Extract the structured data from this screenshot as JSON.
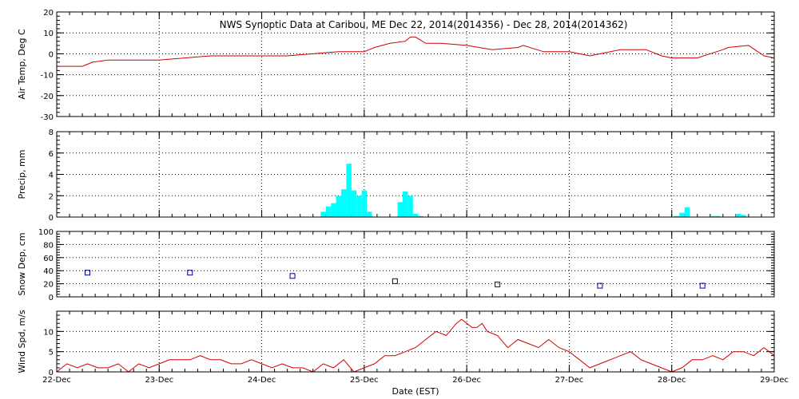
{
  "colors": {
    "background": "#ffffff",
    "axes": "#000000",
    "grid": "#000000",
    "temp_line": "#cc0000",
    "precip_bar": "#00ffff",
    "snow_marker": "#00008b",
    "wind_line": "#cc0000"
  },
  "figure": {
    "title": "NWS Synoptic Data at Caribou, ME    Dec 22, 2014(2014356) - Dec 28, 2014(2014362)",
    "xlabel": "Date (EST)",
    "x_ticks": [
      "22-Dec",
      "23-Dec",
      "24-Dec",
      "25-Dec",
      "26-Dec",
      "27-Dec",
      "28-Dec",
      "29-Dec"
    ]
  },
  "chart_data": [
    {
      "type": "line",
      "ylabel": "Air Temp, Deg C",
      "xlim": [
        0,
        7
      ],
      "ylim": [
        -30,
        20
      ],
      "y_ticks": [
        -30,
        -20,
        -10,
        0,
        10,
        20
      ],
      "grid": true,
      "series": [
        {
          "x": [
            0,
            0.25,
            0.35,
            0.5,
            0.75,
            1.0,
            1.25,
            1.5,
            1.75,
            2.0,
            2.25,
            2.5,
            2.75,
            3.0,
            3.1,
            3.25,
            3.4,
            3.45,
            3.5,
            3.6,
            3.75,
            4.0,
            4.25,
            4.5,
            4.55,
            4.75,
            5.0,
            5.2,
            5.3,
            5.5,
            5.75,
            5.9,
            6.0,
            6.25,
            6.5,
            6.55,
            6.75,
            6.9,
            7.0
          ],
          "y": [
            -6,
            -6,
            -4,
            -3,
            -3,
            -3,
            -2,
            -1,
            -1,
            -1,
            -1,
            0,
            1,
            1,
            3,
            5,
            6,
            8,
            8,
            5,
            5,
            4,
            2,
            3,
            4,
            1,
            1,
            -1,
            0,
            2,
            2,
            -1,
            -2,
            -2,
            2,
            3,
            4,
            -1,
            -2
          ]
        }
      ]
    },
    {
      "type": "bar",
      "ylabel": "Precip, mm",
      "xlim": [
        0,
        7
      ],
      "ylim": [
        0,
        8
      ],
      "y_ticks": [
        0,
        2,
        4,
        6,
        8
      ],
      "grid": true,
      "x": [
        2.6,
        2.65,
        2.7,
        2.75,
        2.8,
        2.85,
        2.9,
        2.95,
        3.0,
        3.05,
        3.35,
        3.4,
        3.45,
        3.5,
        3.55,
        6.05,
        6.1,
        6.15,
        6.4,
        6.45,
        6.65,
        6.7
      ],
      "values": [
        0.5,
        1.0,
        1.3,
        2.0,
        2.6,
        5.0,
        2.5,
        2.0,
        2.5,
        0.5,
        1.4,
        2.4,
        2.0,
        0.3,
        0.1,
        0.1,
        0.4,
        0.9,
        0.1,
        0.1,
        0.3,
        0.2
      ]
    },
    {
      "type": "scatter",
      "ylabel": "Snow Dep, cm",
      "xlim": [
        0,
        7
      ],
      "ylim": [
        0,
        100
      ],
      "y_ticks": [
        0,
        20,
        40,
        60,
        80,
        100
      ],
      "grid": true,
      "x": [
        0.3,
        1.3,
        2.3,
        3.3,
        4.3,
        5.3,
        6.3
      ],
      "y": [
        37,
        37,
        32,
        24,
        19,
        17,
        17
      ]
    },
    {
      "type": "line",
      "ylabel": "Wind Spd, m/s",
      "xlim": [
        0,
        7
      ],
      "ylim": [
        0,
        15
      ],
      "y_ticks": [
        0,
        5,
        10
      ],
      "grid": true,
      "series": [
        {
          "x": [
            0,
            0.1,
            0.2,
            0.3,
            0.4,
            0.5,
            0.6,
            0.7,
            0.8,
            0.9,
            1.0,
            1.1,
            1.2,
            1.3,
            1.4,
            1.5,
            1.6,
            1.7,
            1.8,
            1.9,
            2.0,
            2.1,
            2.2,
            2.3,
            2.4,
            2.5,
            2.6,
            2.7,
            2.8,
            2.9,
            3.0,
            3.1,
            3.2,
            3.3,
            3.4,
            3.5,
            3.6,
            3.7,
            3.8,
            3.9,
            3.95,
            4.0,
            4.05,
            4.1,
            4.15,
            4.2,
            4.3,
            4.4,
            4.5,
            4.6,
            4.7,
            4.8,
            4.9,
            5.0,
            5.1,
            5.2,
            5.3,
            5.4,
            5.5,
            5.6,
            5.7,
            5.8,
            5.9,
            6.0,
            6.1,
            6.2,
            6.3,
            6.4,
            6.5,
            6.6,
            6.7,
            6.8,
            6.9,
            7.0
          ],
          "y": [
            0,
            2,
            1,
            2,
            1,
            1,
            2,
            0,
            2,
            1,
            2,
            3,
            3,
            3,
            4,
            3,
            3,
            2,
            2,
            3,
            2,
            1,
            2,
            1,
            1,
            0,
            2,
            1,
            3,
            0,
            1,
            2,
            4,
            4,
            5,
            6,
            8,
            10,
            9,
            12,
            13,
            12,
            11,
            11,
            12,
            10,
            9,
            6,
            8,
            7,
            6,
            8,
            6,
            5,
            3,
            1,
            2,
            3,
            4,
            5,
            3,
            2,
            1,
            0,
            1,
            3,
            3,
            4,
            3,
            5,
            5,
            4,
            6,
            4
          ]
        }
      ]
    }
  ]
}
